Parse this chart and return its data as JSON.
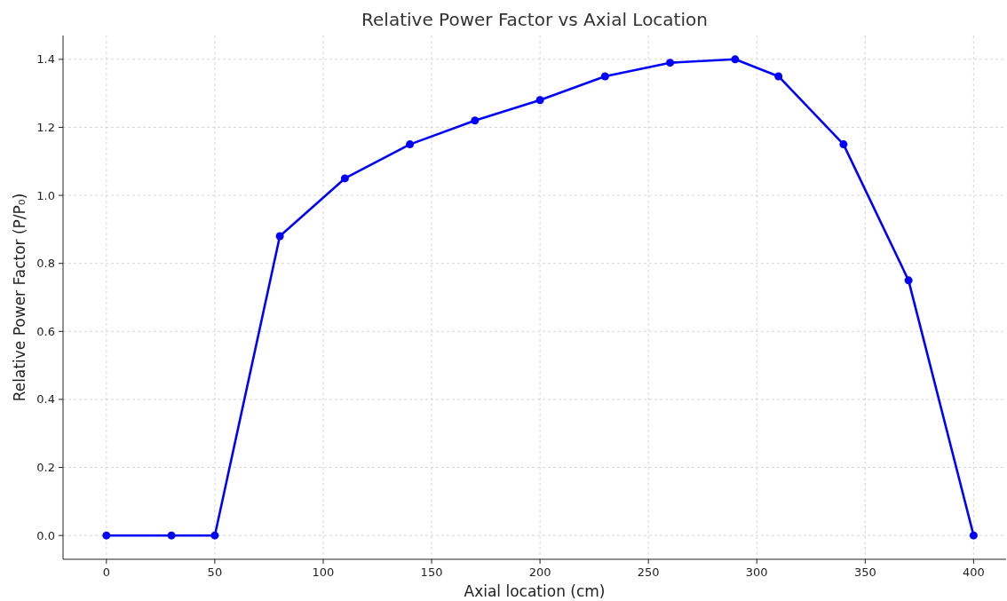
{
  "chart_data": {
    "type": "line",
    "title": "Relative Power Factor vs Axial Location",
    "xlabel": "Axial location (cm)",
    "ylabel": "Relative Power Factor (P/P₀)",
    "x": [
      0,
      30,
      50,
      80,
      110,
      140,
      170,
      200,
      230,
      260,
      290,
      310,
      340,
      370,
      400
    ],
    "series": [
      {
        "color": "#0000ff",
        "values": [
          0,
          0,
          0,
          0.88,
          1.05,
          1.15,
          1.22,
          1.28,
          1.35,
          1.39,
          1.4,
          1.35,
          1.15,
          0.75,
          0
        ]
      }
    ],
    "xlim": [
      -20,
      415
    ],
    "xticks": [
      0,
      50,
      100,
      150,
      200,
      250,
      300,
      350,
      400
    ],
    "ylim": [
      -0.07,
      1.47
    ],
    "yticks": [
      {
        "value": 0,
        "label": "0.0"
      },
      {
        "value": 0.2,
        "label": "0.2"
      },
      {
        "value": 0.4,
        "label": "0.4"
      },
      {
        "value": 0.6,
        "label": "0.6"
      },
      {
        "value": 0.8,
        "label": "0.8"
      },
      {
        "value": 1.0,
        "label": "1.0"
      },
      {
        "value": 1.2,
        "label": "1.2"
      },
      {
        "value": 1.4,
        "label": "1.4"
      }
    ],
    "grid": true,
    "marker": "circle",
    "line_style": "solid"
  }
}
